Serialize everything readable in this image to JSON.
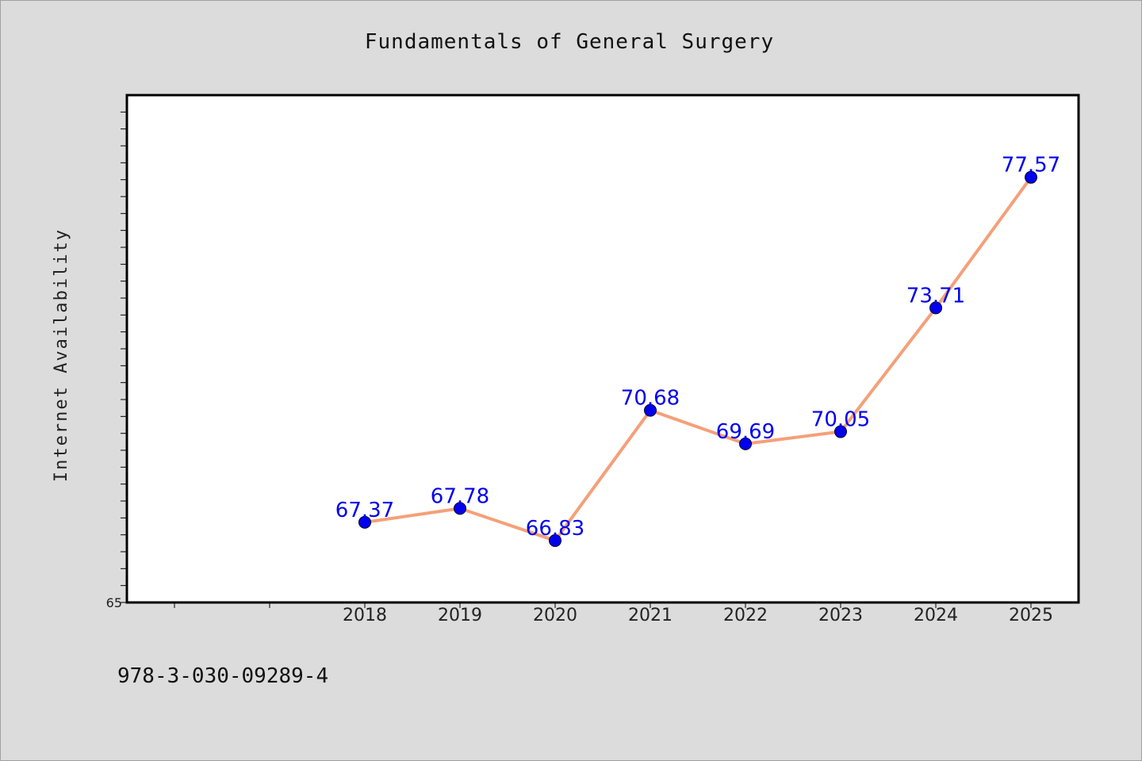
{
  "footer": {
    "isbn": "978-3-030-09289-4"
  },
  "colors": {
    "background": "#dcdcdc",
    "plot_area": "#ffffff",
    "line": "#f4a07a",
    "marker": "#0000ee",
    "data_label": "#0000ee"
  },
  "chart_data": {
    "type": "line",
    "title": "Fundamentals of General Surgery",
    "xlabel": "",
    "ylabel": "Internet Availability",
    "x": [
      "2018",
      "2019",
      "2020",
      "2021",
      "2022",
      "2023",
      "2024",
      "2025"
    ],
    "series": [
      {
        "values": [
          67.37,
          67.78,
          66.83,
          70.68,
          69.69,
          70.05,
          73.71,
          77.57
        ]
      }
    ],
    "data_labels": [
      "67.37",
      "67.78",
      "66.83",
      "70.68",
      "69.69",
      "70.05",
      "73.71",
      "77.57"
    ],
    "ylim": [
      65,
      80
    ],
    "ytick_labels": [
      "65"
    ],
    "xlim": [
      2015.5,
      2025.5
    ],
    "grid": false,
    "legend": "none"
  }
}
